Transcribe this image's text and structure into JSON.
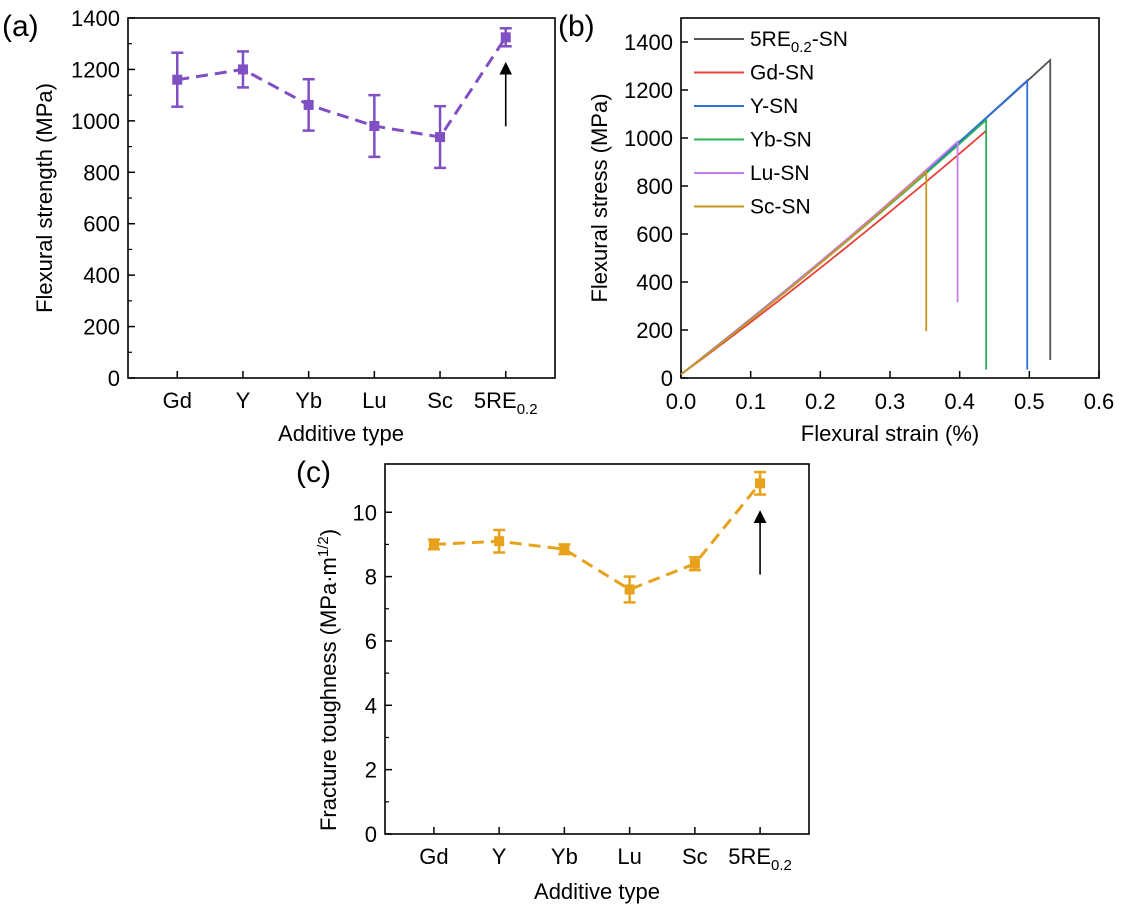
{
  "colors": {
    "a_series": "#7f4fc4",
    "c_series": "#e8a11a",
    "axis": "#000000"
  },
  "chart_data": [
    {
      "panel": "(a)",
      "type": "line",
      "xlabel": "Additive type",
      "ylabel": "Flexural strength (MPa)",
      "categories": [
        "Gd",
        "Y",
        "Yb",
        "Lu",
        "Sc",
        "5RE"
      ],
      "category_subscripts": [
        "",
        "",
        "",
        "",
        "",
        "0.2"
      ],
      "values": [
        1160,
        1200,
        1062,
        980,
        937,
        1325
      ],
      "errors": [
        105,
        70,
        100,
        120,
        120,
        35
      ],
      "ylim": [
        0,
        1400
      ],
      "yticks": [
        0,
        200,
        400,
        600,
        800,
        1000,
        1200,
        1400
      ],
      "line_style": "dashed",
      "marker": "square",
      "annotation": "upward arrow below 5RE0.2 point"
    },
    {
      "panel": "(b)",
      "type": "line",
      "xlabel": "Flexural strain (%)",
      "ylabel": "Flexural stress (MPa)",
      "xlim": [
        0,
        0.6
      ],
      "ylim": [
        0,
        1500
      ],
      "xticks": [
        0.0,
        0.1,
        0.2,
        0.3,
        0.4,
        0.5,
        0.6
      ],
      "yticks": [
        0,
        200,
        400,
        600,
        800,
        1000,
        1200,
        1400
      ],
      "legend_position": "top-left",
      "series": [
        {
          "name": "5RE",
          "subscript": "0.2",
          "suffix": "-SN",
          "color": "#555555",
          "fracture_strain": 0.53,
          "peak_stress": 1325,
          "end_stress": 75
        },
        {
          "name": "Gd-SN",
          "subscript": "",
          "suffix": "",
          "color": "#e8413c",
          "fracture_strain": 0.438,
          "peak_stress": 1030,
          "end_stress": 1030
        },
        {
          "name": "Y-SN",
          "subscript": "",
          "suffix": "",
          "color": "#2e6fd8",
          "fracture_strain": 0.497,
          "peak_stress": 1240,
          "end_stress": 35
        },
        {
          "name": "Yb-SN",
          "subscript": "",
          "suffix": "",
          "color": "#2bb35c",
          "fracture_strain": 0.438,
          "peak_stress": 1075,
          "end_stress": 35
        },
        {
          "name": "Lu-SN",
          "subscript": "",
          "suffix": "",
          "color": "#c77ee6",
          "fracture_strain": 0.397,
          "peak_stress": 985,
          "end_stress": 315
        },
        {
          "name": "Sc-SN",
          "subscript": "",
          "suffix": "",
          "color": "#c9961c",
          "fracture_strain": 0.352,
          "peak_stress": 860,
          "end_stress": 195
        }
      ]
    },
    {
      "panel": "(c)",
      "type": "line",
      "xlabel": "Additive type",
      "ylabel": "Fracture toughness (MPa·m",
      "ylabel_superscript": "1/2",
      "ylabel_close": ")",
      "categories": [
        "Gd",
        "Y",
        "Yb",
        "Lu",
        "Sc",
        "5RE"
      ],
      "category_subscripts": [
        "",
        "",
        "",
        "",
        "",
        "0.2"
      ],
      "values": [
        9.0,
        9.1,
        8.85,
        7.6,
        8.4,
        10.9
      ],
      "errors": [
        0.15,
        0.35,
        0.15,
        0.4,
        0.2,
        0.35
      ],
      "ylim": [
        0,
        11.5
      ],
      "yticks": [
        0,
        2,
        4,
        6,
        8,
        10
      ],
      "line_style": "dashed",
      "marker": "square",
      "annotation": "upward arrow below 5RE0.2 point"
    }
  ]
}
